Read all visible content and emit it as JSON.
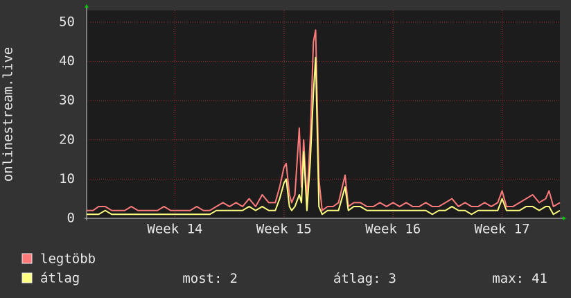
{
  "chart_data": {
    "type": "line",
    "y_label": "onlinestream.live",
    "x": [
      13.19,
      13.25,
      13.3,
      13.36,
      13.42,
      13.48,
      13.54,
      13.6,
      13.66,
      13.72,
      13.78,
      13.84,
      13.9,
      13.96,
      14.02,
      14.08,
      14.14,
      14.2,
      14.26,
      14.32,
      14.38,
      14.44,
      14.5,
      14.56,
      14.62,
      14.68,
      14.74,
      14.8,
      14.86,
      14.92,
      14.96,
      15.0,
      15.02,
      15.05,
      15.07,
      15.1,
      15.14,
      15.16,
      15.18,
      15.21,
      15.24,
      15.27,
      15.29,
      15.32,
      15.35,
      15.4,
      15.45,
      15.5,
      15.56,
      15.59,
      15.64,
      15.7,
      15.76,
      15.82,
      15.88,
      15.94,
      16.0,
      16.06,
      16.12,
      16.18,
      16.24,
      16.3,
      16.36,
      16.42,
      16.48,
      16.54,
      16.6,
      16.66,
      16.72,
      16.78,
      16.84,
      16.9,
      16.96,
      17.0,
      17.04,
      17.1,
      17.16,
      17.22,
      17.28,
      17.34,
      17.4,
      17.43,
      17.47,
      17.53
    ],
    "series": [
      {
        "name": "legtöbb",
        "color": "#ff7b7b",
        "values": [
          2,
          2,
          3,
          3,
          2,
          2,
          2,
          3,
          2,
          2,
          2,
          2,
          3,
          2,
          2,
          2,
          2,
          3,
          2,
          2,
          3,
          4,
          3,
          4,
          3,
          5,
          3,
          6,
          4,
          4,
          8,
          13,
          14,
          6,
          4,
          6,
          23,
          8,
          20,
          5,
          20,
          45,
          48,
          10,
          2,
          3,
          3,
          4,
          11,
          3,
          4,
          4,
          3,
          3,
          4,
          3,
          4,
          3,
          4,
          3,
          3,
          4,
          3,
          3,
          4,
          5,
          3,
          4,
          3,
          3,
          4,
          3,
          4,
          7,
          3,
          3,
          4,
          5,
          6,
          4,
          5,
          7,
          3,
          4
        ]
      },
      {
        "name": "átlag",
        "color": "#ffff80",
        "values": [
          1,
          1,
          1,
          2,
          1,
          1,
          1,
          1,
          1,
          1,
          1,
          1,
          1,
          1,
          1,
          1,
          1,
          1,
          1,
          1,
          2,
          2,
          2,
          2,
          2,
          3,
          2,
          3,
          2,
          2,
          5,
          9,
          10,
          3,
          2,
          3,
          6,
          4,
          17,
          2,
          14,
          32,
          41,
          3,
          1,
          2,
          2,
          2,
          8,
          2,
          3,
          3,
          2,
          2,
          2,
          2,
          2,
          2,
          2,
          2,
          2,
          2,
          1,
          2,
          2,
          3,
          2,
          2,
          1,
          2,
          2,
          2,
          2,
          5,
          2,
          2,
          2,
          3,
          3,
          2,
          3,
          3,
          1,
          2
        ]
      }
    ],
    "xlim": [
      13.19,
      17.53
    ],
    "xticks": [
      {
        "value": 14,
        "label": "Week 14"
      },
      {
        "value": 15,
        "label": "Week 15"
      },
      {
        "value": 16,
        "label": "Week 16"
      },
      {
        "value": 17,
        "label": "Week 17"
      }
    ],
    "ylim": [
      0,
      53
    ],
    "yticks": [
      0,
      10,
      20,
      30,
      40,
      50
    ],
    "grid": true,
    "stats": [
      {
        "label": "most:",
        "value": 2
      },
      {
        "label": "átlag:",
        "value": 3
      },
      {
        "label": "max:",
        "value": 41
      }
    ]
  }
}
